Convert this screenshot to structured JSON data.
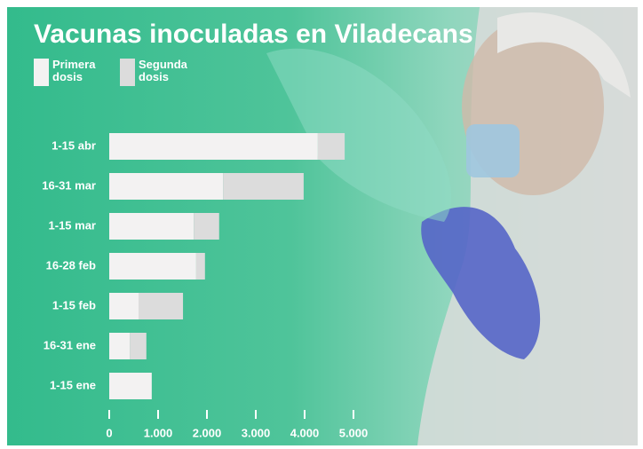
{
  "chart_data": {
    "type": "stacked-bar-horizontal",
    "title": "Vacunas inoculadas en Viladecans",
    "categories": [
      "1-15 abr",
      "16-31 mar",
      "1-15 mar",
      "16-28 feb",
      "1-15 feb",
      "16-31 ene",
      "1-15 ene"
    ],
    "series": [
      {
        "name": "Primera dosis",
        "color": "#f3f2f2",
        "values": [
          4270,
          2330,
          1730,
          1780,
          600,
          420,
          870
        ]
      },
      {
        "name": "Segunda dosis",
        "color": "#dcdcdc",
        "values": [
          550,
          1650,
          520,
          180,
          910,
          340,
          0
        ]
      }
    ],
    "xlim": [
      0,
      5000
    ],
    "xticks": [
      0,
      {
        "value": 1000,
        "label": "1.000"
      },
      {
        "value": 2000,
        "label": "2.000"
      },
      {
        "value": 3000,
        "label": "3.000"
      },
      {
        "value": 4000,
        "label": "4.000"
      },
      {
        "value": 5000,
        "label": "5.000"
      }
    ]
  }
}
